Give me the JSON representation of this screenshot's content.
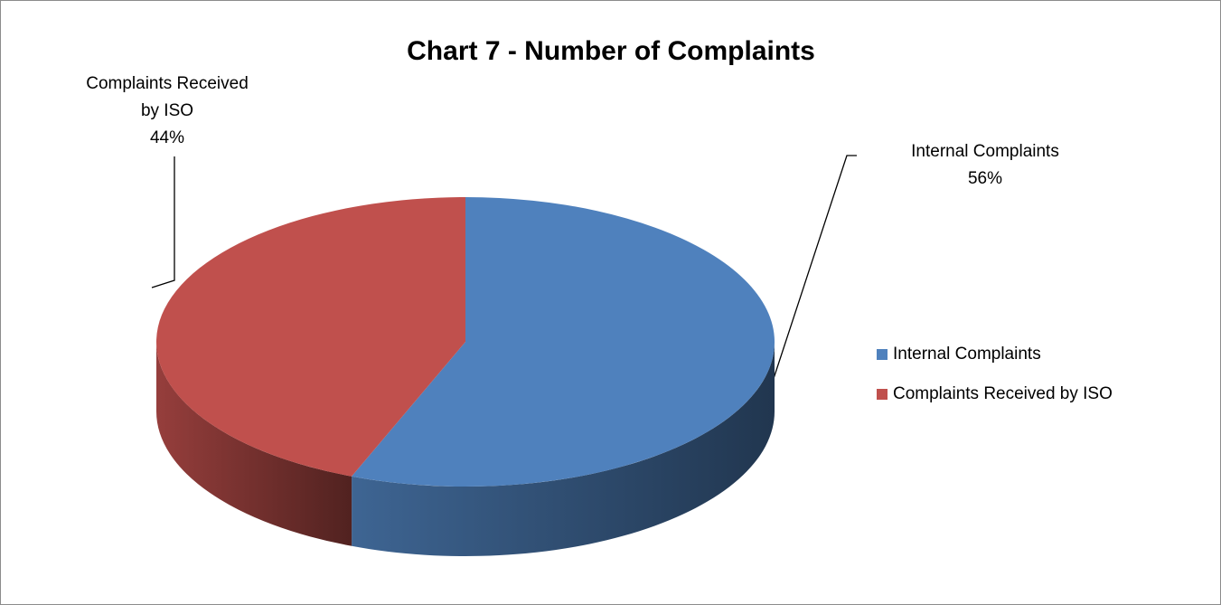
{
  "chart_data": {
    "type": "pie3d",
    "title": "Chart 7 - Number of Complaints",
    "categories": [
      "Internal Complaints",
      "Complaints Received by ISO"
    ],
    "values": [
      56,
      44
    ],
    "value_labels": [
      "56%",
      "44%"
    ],
    "colors": [
      "#4f81bd",
      "#c0504d"
    ],
    "legend": "right"
  }
}
